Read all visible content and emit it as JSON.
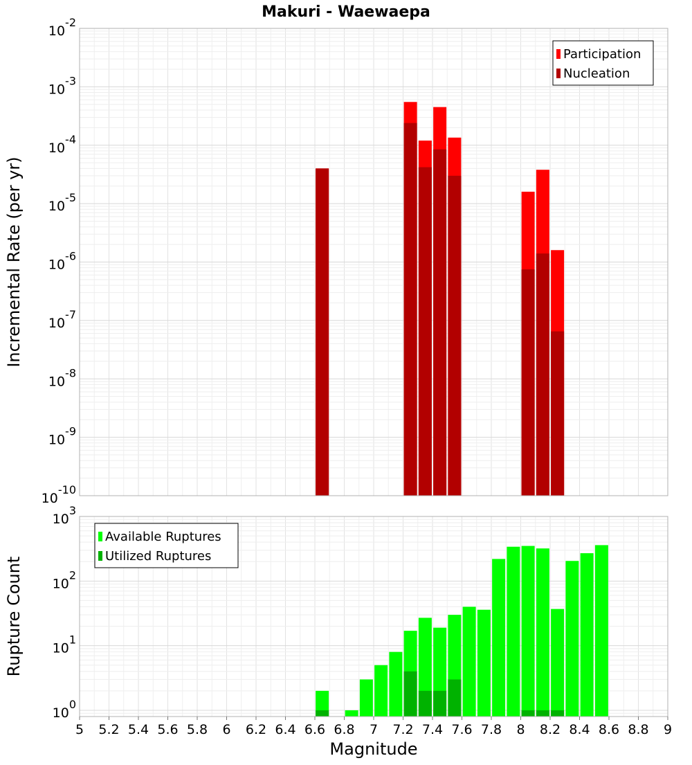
{
  "chart_data": [
    {
      "type": "bar",
      "title": "Makuri - Waewaepa",
      "xlabel": "",
      "ylabel": "Incremental Rate (per yr)",
      "yscale": "log",
      "ylim": [
        1e-10,
        0.01
      ],
      "xlim": [
        5,
        9
      ],
      "grid": true,
      "legend_position": "top-right",
      "series": [
        {
          "name": "Participation",
          "color": "#ff0000",
          "points": [
            {
              "x": 6.65,
              "y": 4e-05
            },
            {
              "x": 7.25,
              "y": 0.00055
            },
            {
              "x": 7.35,
              "y": 0.00012
            },
            {
              "x": 7.45,
              "y": 0.00045
            },
            {
              "x": 7.55,
              "y": 0.000135
            },
            {
              "x": 8.05,
              "y": 1.6e-05
            },
            {
              "x": 8.15,
              "y": 3.8e-05
            },
            {
              "x": 8.25,
              "y": 1.6e-06
            }
          ]
        },
        {
          "name": "Nucleation",
          "color": "#b20000",
          "points": [
            {
              "x": 6.65,
              "y": 4e-05
            },
            {
              "x": 7.25,
              "y": 0.00024
            },
            {
              "x": 7.35,
              "y": 4.2e-05
            },
            {
              "x": 7.45,
              "y": 8.5e-05
            },
            {
              "x": 7.55,
              "y": 3e-05
            },
            {
              "x": 8.05,
              "y": 7.5e-07
            },
            {
              "x": 8.15,
              "y": 1.4e-06
            },
            {
              "x": 8.25,
              "y": 6.5e-08
            }
          ]
        }
      ]
    },
    {
      "type": "bar",
      "title": "",
      "xlabel": "Magnitude",
      "ylabel": "Rupture Count",
      "yscale": "log",
      "ylim": [
        0.8,
        1000
      ],
      "xlim": [
        5,
        9
      ],
      "grid": true,
      "legend_position": "top-left",
      "series": [
        {
          "name": "Available Ruptures",
          "color": "#00ff00",
          "points": [
            {
              "x": 6.65,
              "y": 2
            },
            {
              "x": 6.85,
              "y": 1
            },
            {
              "x": 6.95,
              "y": 3
            },
            {
              "x": 7.05,
              "y": 5
            },
            {
              "x": 7.15,
              "y": 8
            },
            {
              "x": 7.25,
              "y": 17
            },
            {
              "x": 7.35,
              "y": 27
            },
            {
              "x": 7.45,
              "y": 19
            },
            {
              "x": 7.55,
              "y": 30
            },
            {
              "x": 7.65,
              "y": 40
            },
            {
              "x": 7.75,
              "y": 36
            },
            {
              "x": 7.85,
              "y": 220
            },
            {
              "x": 7.95,
              "y": 340
            },
            {
              "x": 8.05,
              "y": 350
            },
            {
              "x": 8.15,
              "y": 320
            },
            {
              "x": 8.25,
              "y": 37
            },
            {
              "x": 8.35,
              "y": 205
            },
            {
              "x": 8.45,
              "y": 270
            },
            {
              "x": 8.55,
              "y": 360
            }
          ]
        },
        {
          "name": "Utilized Ruptures",
          "color": "#00b200",
          "points": [
            {
              "x": 6.65,
              "y": 1
            },
            {
              "x": 7.25,
              "y": 4
            },
            {
              "x": 7.35,
              "y": 2
            },
            {
              "x": 7.45,
              "y": 2
            },
            {
              "x": 7.55,
              "y": 3
            },
            {
              "x": 8.05,
              "y": 1
            },
            {
              "x": 8.15,
              "y": 1
            },
            {
              "x": 8.25,
              "y": 1
            }
          ]
        }
      ]
    }
  ],
  "x_tick_labels": [
    "5",
    "5.2",
    "5.4",
    "5.6",
    "5.8",
    "6",
    "6.2",
    "6.4",
    "6.6",
    "6.8",
    "7",
    "7.2",
    "7.4",
    "7.6",
    "7.8",
    "8",
    "8.2",
    "8.4",
    "8.6",
    "8.8",
    "9"
  ],
  "top_y_ticks": [
    {
      "base": "10",
      "exp": "-2"
    },
    {
      "base": "10",
      "exp": "-3"
    },
    {
      "base": "10",
      "exp": "-4"
    },
    {
      "base": "10",
      "exp": "-5"
    },
    {
      "base": "10",
      "exp": "-6"
    },
    {
      "base": "10",
      "exp": "-7"
    },
    {
      "base": "10",
      "exp": "-8"
    },
    {
      "base": "10",
      "exp": "-9"
    },
    {
      "base": "10",
      "exp": "-10"
    }
  ],
  "bottom_y_ticks": [
    {
      "base": "10",
      "exp": "3"
    },
    {
      "base": "10",
      "exp": "2"
    },
    {
      "base": "10",
      "exp": "1"
    },
    {
      "base": "10",
      "exp": "0"
    }
  ]
}
